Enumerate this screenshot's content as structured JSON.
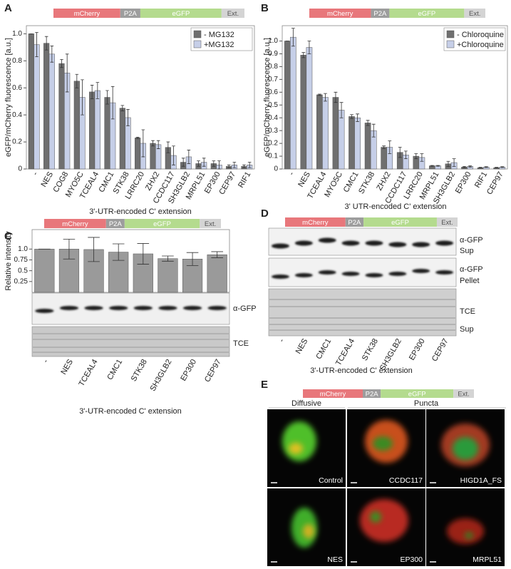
{
  "panels": [
    "A",
    "B",
    "C",
    "D",
    "E"
  ],
  "construct": [
    "mCherry",
    "P2A",
    "eGFP",
    "Ext."
  ],
  "chart_data": [
    {
      "type": "bar",
      "ylabel": "eGFP/mCherry fluorescence [a.u.]",
      "xlabel": "3'-UTR-encoded C' extension",
      "categories": [
        "-",
        "NES",
        "COG8",
        "MYO5C",
        "TCEAL4",
        "CMC1",
        "STK38",
        "LRRC20",
        "ZHX2",
        "CCDC117",
        "SH3GLB2",
        "MRPL51",
        "EP300",
        "CEP97",
        "RIF1"
      ],
      "series": [
        {
          "name": "- MG132",
          "color": "#6f6f6f",
          "values": [
            1.0,
            0.93,
            0.78,
            0.65,
            0.57,
            0.53,
            0.45,
            0.23,
            0.19,
            0.16,
            0.05,
            0.04,
            0.04,
            0.02,
            0.02
          ],
          "errors": [
            0,
            0.05,
            0.03,
            0.05,
            0.05,
            0.05,
            0.02,
            0.005,
            0.02,
            0.04,
            0.03,
            0.02,
            0.02,
            0.01,
            0.01
          ]
        },
        {
          "name": "+MG132",
          "color": "#c6cfe8",
          "values": [
            0.92,
            0.85,
            0.71,
            0.53,
            0.58,
            0.49,
            0.38,
            0.19,
            0.18,
            0.1,
            0.09,
            0.05,
            0.03,
            0.03,
            0.03
          ],
          "errors": [
            0.09,
            0.06,
            0.14,
            0.13,
            0.06,
            0.12,
            0.06,
            0.1,
            0.03,
            0.07,
            0.05,
            0.03,
            0.03,
            0.02,
            0.02
          ]
        }
      ],
      "ylim": [
        0,
        1.06
      ],
      "yticks": [
        0,
        0.2,
        0.4,
        0.6,
        0.8,
        {
          "value": 1,
          "label": "1.0"
        }
      ],
      "legend": "upper right"
    },
    {
      "type": "bar",
      "ylabel": "eGFP/mCherry fluorescence [a.u.]",
      "xlabel": "3' UTR-encoded C' extension",
      "categories": [
        "-",
        "NES",
        "TCEAL4",
        "MYO5C",
        "CMC1",
        "STK38",
        "ZHX2",
        "CCDC117",
        "LRRC20",
        "MRPL51",
        "SH3GLB2",
        "EP300",
        "RIF1",
        "CEP97"
      ],
      "series": [
        {
          "name": "- Chloroquine",
          "color": "#6f6f6f",
          "values": [
            1.0,
            0.89,
            0.58,
            0.56,
            0.41,
            0.36,
            0.17,
            0.13,
            0.1,
            0.025,
            0.04,
            0.015,
            0.01,
            0.01
          ],
          "errors": [
            0,
            0.02,
            0.005,
            0.04,
            0.015,
            0.02,
            0.01,
            0.04,
            0.02,
            0.003,
            0.02,
            0.005,
            0.003,
            0.003
          ]
        },
        {
          "name": "+Chloroquine",
          "color": "#c6cfe8",
          "values": [
            1.03,
            0.95,
            0.56,
            0.46,
            0.4,
            0.3,
            0.17,
            0.11,
            0.09,
            0.025,
            0.05,
            0.02,
            0.015,
            0.015
          ],
          "errors": [
            0.07,
            0.05,
            0.03,
            0.06,
            0.03,
            0.05,
            0.05,
            0.03,
            0.03,
            0.003,
            0.03,
            0.005,
            0.003,
            0.003
          ]
        }
      ],
      "ylim": [
        0,
        1.12
      ],
      "yticks": [
        0,
        0.1,
        0.2,
        0.3,
        0.4,
        0.5,
        0.6,
        0.7,
        0.8,
        0.9,
        {
          "value": 1,
          "label": "1.0"
        }
      ],
      "legend": "upper right"
    },
    {
      "type": "bar",
      "ylabel": "Relative intensity",
      "xlabel": "3'-UTR-encoded C' extension",
      "categories": [
        "-",
        "NES",
        "TCEAL4",
        "CMC1",
        "STK38",
        "SH3GLB2",
        "EP300",
        "CEP97"
      ],
      "values": [
        1.0,
        1.0,
        0.99,
        0.93,
        0.89,
        0.78,
        0.77,
        0.87
      ],
      "errors": [
        0,
        0.23,
        0.28,
        0.19,
        0.24,
        0.06,
        0.15,
        0.07
      ],
      "color": "#9a9a9a",
      "ylim": [
        0,
        1.45
      ],
      "yticks": [
        0.25,
        0.5,
        0.75,
        {
          "value": 1,
          "label": "1.0"
        }
      ]
    }
  ],
  "blot_c": {
    "labels": [
      "α-GFP",
      "TCE"
    ]
  },
  "panel_d": {
    "labels": [
      "α-GFP",
      "Sup",
      "α-GFP",
      "Pellet",
      "TCE",
      "Sup"
    ],
    "categories": [
      "-",
      "NES",
      "CMC1",
      "TCEAL4",
      "STK38",
      "SH3GLB2",
      "EP300",
      "CEP97"
    ],
    "xlabel": "3'-UTR-encoded C' extension"
  },
  "panel_e": {
    "groups": [
      "Diffusive",
      "Puncta"
    ],
    "images": [
      "Control",
      "CCDC117",
      "HIGD1A_FS",
      "NES",
      "EP300",
      "MRPL51"
    ]
  }
}
